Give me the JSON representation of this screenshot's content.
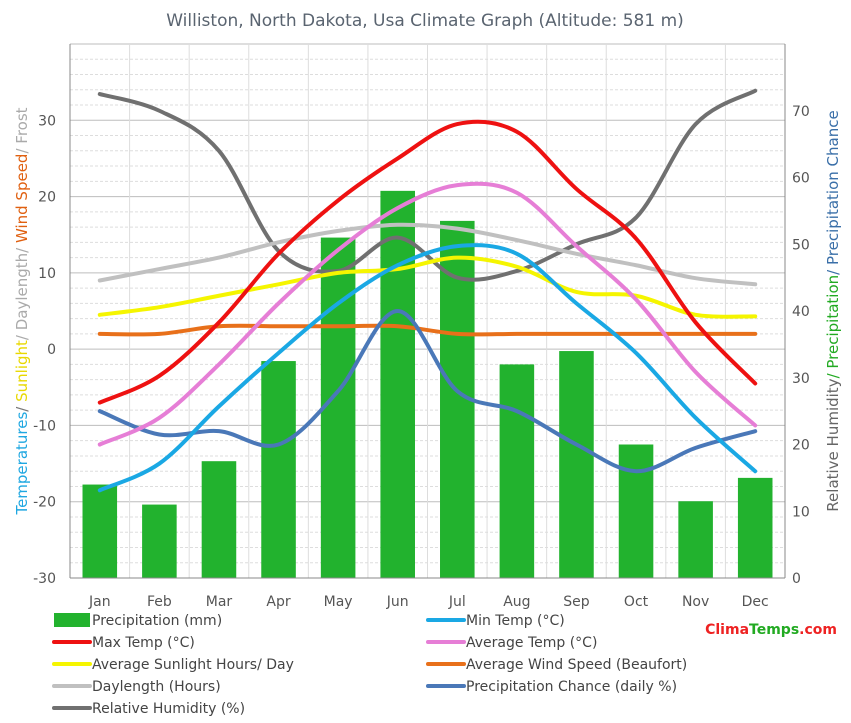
{
  "chart_data": {
    "type": "bar+line",
    "title": "Williston, North Dakota, Usa Climate Graph (Altitude: 581 m)",
    "categories": [
      "Jan",
      "Feb",
      "Mar",
      "Apr",
      "May",
      "Jun",
      "Jul",
      "Aug",
      "Sep",
      "Oct",
      "Nov",
      "Dec"
    ],
    "left_axis": {
      "ylim": [
        -30,
        40
      ],
      "ticks": [
        -30,
        -20,
        -10,
        0,
        10,
        20,
        30
      ],
      "label_parts": [
        {
          "text": "Temperatures",
          "color": "#1ea7e1"
        },
        {
          "text": "/ ",
          "color": "#777777"
        },
        {
          "text": "Sunlight",
          "color": "#e8d800"
        },
        {
          "text": "/ Daylength/ ",
          "color": "#aaaaaa"
        },
        {
          "text": "Wind Speed",
          "color": "#e06010"
        },
        {
          "text": "/ Frost",
          "color": "#aaaaaa"
        }
      ]
    },
    "right_axis": {
      "ylim": [
        0,
        80
      ],
      "ticks": [
        0,
        10,
        20,
        30,
        40,
        50,
        60,
        70
      ],
      "label_parts": [
        {
          "text": "Relative Humidity",
          "color": "#666666"
        },
        {
          "text": "/ Precipitation",
          "color": "#22aa22"
        },
        {
          "text": "/ Precipitation Chance",
          "color": "#3a6fa8"
        }
      ]
    },
    "bars": {
      "name": "Precipitation (mm)",
      "color": "#22b22e",
      "values": [
        14,
        11,
        17.5,
        32.5,
        51,
        58,
        53.5,
        32,
        34,
        20,
        11.5,
        15
      ]
    },
    "series": [
      {
        "name": "Relative Humidity (%)",
        "color": "#707070",
        "axis": "right",
        "values": [
          72.5,
          70,
          64,
          49,
          46,
          51,
          45,
          46,
          50,
          54,
          68,
          73
        ]
      },
      {
        "name": "Daylength (Hours)",
        "color": "#c0c0c0",
        "axis": "left",
        "values": [
          9,
          10.5,
          12,
          14,
          15.5,
          16.3,
          15.8,
          14.3,
          12.5,
          11,
          9.3,
          8.5
        ]
      },
      {
        "name": "Average Sunlight Hours/ Day",
        "color": "#f5f500",
        "axis": "left",
        "values": [
          4.5,
          5.5,
          7,
          8.5,
          10,
          10.5,
          12,
          10.8,
          7.5,
          7,
          4.5,
          4.3
        ]
      },
      {
        "name": "Average Wind Speed (Beaufort)",
        "color": "#e8701a",
        "axis": "left",
        "values": [
          2,
          2,
          3,
          3,
          3,
          3,
          2,
          2,
          2,
          2,
          2,
          2
        ]
      },
      {
        "name": "Precipitation Chance (daily %)",
        "color": "#4a78b8",
        "axis": "right",
        "values": [
          25,
          21.5,
          22,
          20,
          28,
          40,
          28,
          25,
          20,
          16,
          19.5,
          22
        ]
      },
      {
        "name": "Max Temp (°C)",
        "color": "#ee1111",
        "axis": "left",
        "values": [
          -7,
          -3.5,
          3.5,
          12.5,
          19.5,
          25,
          29.5,
          28.5,
          21,
          14.5,
          3.5,
          -4.5
        ]
      },
      {
        "name": "Min Temp (°C)",
        "color": "#1aa8e4",
        "axis": "left",
        "values": [
          -18.5,
          -15,
          -7.5,
          -0.5,
          6,
          11,
          13.5,
          12.5,
          6,
          -0.5,
          -9,
          -16
        ]
      },
      {
        "name": "Average Temp (°C)",
        "color": "#e67ed6",
        "axis": "left",
        "values": [
          -12.5,
          -9,
          -2,
          6,
          13,
          18.5,
          21.5,
          20.5,
          13.5,
          6.5,
          -3,
          -10
        ]
      }
    ],
    "legend": [
      {
        "name": "Precipitation (mm)",
        "color": "#22b22e",
        "kind": "bar"
      },
      {
        "name": "Min Temp (°C)",
        "color": "#1aa8e4",
        "kind": "line"
      },
      {
        "name": "Max Temp (°C)",
        "color": "#ee1111",
        "kind": "line"
      },
      {
        "name": "Average Temp (°C)",
        "color": "#e67ed6",
        "kind": "line"
      },
      {
        "name": "Average Sunlight Hours/ Day",
        "color": "#f5f500",
        "kind": "line"
      },
      {
        "name": "Average Wind Speed (Beaufort)",
        "color": "#e8701a",
        "kind": "line"
      },
      {
        "name": "Daylength (Hours)",
        "color": "#c0c0c0",
        "kind": "line"
      },
      {
        "name": "Precipitation Chance (daily %)",
        "color": "#4a78b8",
        "kind": "line"
      },
      {
        "name": "Relative Humidity (%)",
        "color": "#707070",
        "kind": "line"
      }
    ],
    "grid": true,
    "legend_placement": "bottom"
  },
  "brand": {
    "part1": "Clima",
    "part2": "Temps",
    "part3": ".com",
    "color1": "#ee2222",
    "color2": "#22aa22"
  }
}
